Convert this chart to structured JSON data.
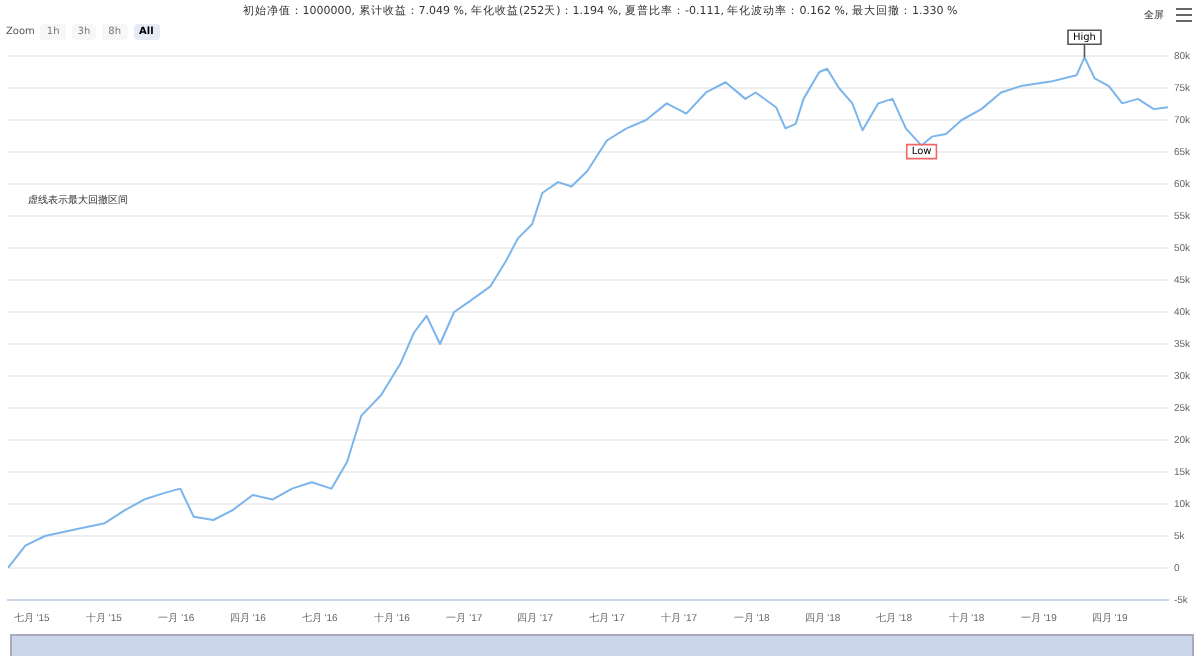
{
  "chart_data": {
    "type": "line",
    "title": "初始净值：1000000, 累计收益：7.049 %, 年化收益(252天)：1.194 %, 夏普比率：-0.111, 年化波动率：0.162 %, 最大回撤：1.330 %",
    "x": [
      "2015-06-01",
      "2015-06-23",
      "2015-07-18",
      "2015-08-25",
      "2015-10-02",
      "2015-10-27",
      "2015-11-21",
      "2015-12-16",
      "2016-01-06",
      "2016-01-23",
      "2016-02-17",
      "2016-03-12",
      "2016-04-07",
      "2016-05-02",
      "2016-05-27",
      "2016-06-21",
      "2016-07-16",
      "2016-08-05",
      "2016-08-23",
      "2016-09-17",
      "2016-10-12",
      "2016-10-29",
      "2016-11-14",
      "2016-12-01",
      "2016-12-19",
      "2017-01-08",
      "2017-02-03",
      "2017-02-23",
      "2017-03-10",
      "2017-03-28",
      "2017-04-10",
      "2017-04-30",
      "2017-05-17",
      "2017-06-06",
      "2017-07-01",
      "2017-07-26",
      "2017-08-20",
      "2017-09-15",
      "2017-10-10",
      "2017-11-04",
      "2017-11-29",
      "2017-12-24",
      "2018-01-06",
      "2018-02-01",
      "2018-02-13",
      "2018-02-26",
      "2018-03-08",
      "2018-03-28",
      "2018-04-07",
      "2018-04-22",
      "2018-05-09",
      "2018-05-22",
      "2018-06-11",
      "2018-06-29",
      "2018-07-16",
      "2018-08-05",
      "2018-08-18",
      "2018-09-05",
      "2018-09-25",
      "2018-10-20",
      "2018-11-14",
      "2018-12-09",
      "2019-01-16",
      "2019-02-18",
      "2019-02-28",
      "2019-03-13",
      "2019-03-31",
      "2019-04-17",
      "2019-05-07",
      "2019-05-27",
      "2019-06-14"
    ],
    "series": [
      {
        "color": "#7cb5ec",
        "values": [
          0,
          3.5,
          5,
          6,
          7,
          9,
          10.7,
          11.7,
          12.4,
          8,
          7.5,
          9,
          11.4,
          10.7,
          12.4,
          13.4,
          12.4,
          16.6,
          23.8,
          27,
          32,
          36.8,
          39.4,
          35,
          40,
          41.7,
          44,
          48,
          51.5,
          53.7,
          58.6,
          60.3,
          59.6,
          62,
          66.8,
          68.7,
          70,
          72.6,
          71,
          74.3,
          75.9,
          73.3,
          74.3,
          72,
          68.7,
          69.4,
          73.3,
          77.5,
          78,
          75,
          72.6,
          68.4,
          72.6,
          73.3,
          68.7,
          66,
          67.4,
          67.8,
          70,
          71.7,
          74.3,
          75.3,
          76,
          77,
          79.8,
          76.5,
          75.3,
          72.6,
          73.3,
          71.7,
          72
        ]
      }
    ],
    "xlim": [
      "2015-06-01",
      "2019-06-14"
    ],
    "xticks": [
      {
        "value": "2015-07-01",
        "label": "七月 '15"
      },
      {
        "value": "2015-10-01",
        "label": "十月 '15"
      },
      {
        "value": "2016-01-01",
        "label": "一月 '16"
      },
      {
        "value": "2016-04-01",
        "label": "四月 '16"
      },
      {
        "value": "2016-07-01",
        "label": "七月 '16"
      },
      {
        "value": "2016-10-01",
        "label": "十月 '16"
      },
      {
        "value": "2017-01-01",
        "label": "一月 '17"
      },
      {
        "value": "2017-04-01",
        "label": "四月 '17"
      },
      {
        "value": "2017-07-01",
        "label": "七月 '17"
      },
      {
        "value": "2017-10-01",
        "label": "十月 '17"
      },
      {
        "value": "2018-01-01",
        "label": "一月 '18"
      },
      {
        "value": "2018-04-01",
        "label": "四月 '18"
      },
      {
        "value": "2018-07-01",
        "label": "七月 '18"
      },
      {
        "value": "2018-10-01",
        "label": "十月 '18"
      },
      {
        "value": "2019-01-01",
        "label": "一月 '19"
      },
      {
        "value": "2019-04-01",
        "label": "四月 '19"
      }
    ],
    "ylim": [
      -5,
      80
    ],
    "yticks": [
      {
        "value": -5,
        "label": "-5k"
      },
      {
        "value": 0,
        "label": "0"
      },
      {
        "value": 5,
        "label": "5k"
      },
      {
        "value": 10,
        "label": "10k"
      },
      {
        "value": 15,
        "label": "15k"
      },
      {
        "value": 20,
        "label": "20k"
      },
      {
        "value": 25,
        "label": "25k"
      },
      {
        "value": 30,
        "label": "30k"
      },
      {
        "value": 35,
        "label": "35k"
      },
      {
        "value": 40,
        "label": "40k"
      },
      {
        "value": 45,
        "label": "45k"
      },
      {
        "value": 50,
        "label": "50k"
      },
      {
        "value": 55,
        "label": "55k"
      },
      {
        "value": 60,
        "label": "60k"
      },
      {
        "value": 65,
        "label": "65k"
      },
      {
        "value": 70,
        "label": "70k"
      },
      {
        "value": 75,
        "label": "75k"
      },
      {
        "value": 80,
        "label": "80k"
      }
    ],
    "grid": "y",
    "legend": false,
    "marker": "none",
    "line_style": "solid",
    "annotations": [
      "虚线表示最大回撤区间",
      "Zoom",
      "1h",
      "3h",
      "8h",
      "All",
      "全屏",
      {
        "text": "High",
        "x": "2019-02-28",
        "y": 79.8
      },
      {
        "text": "Low",
        "x": "2018-08-05",
        "y": 66
      }
    ]
  }
}
